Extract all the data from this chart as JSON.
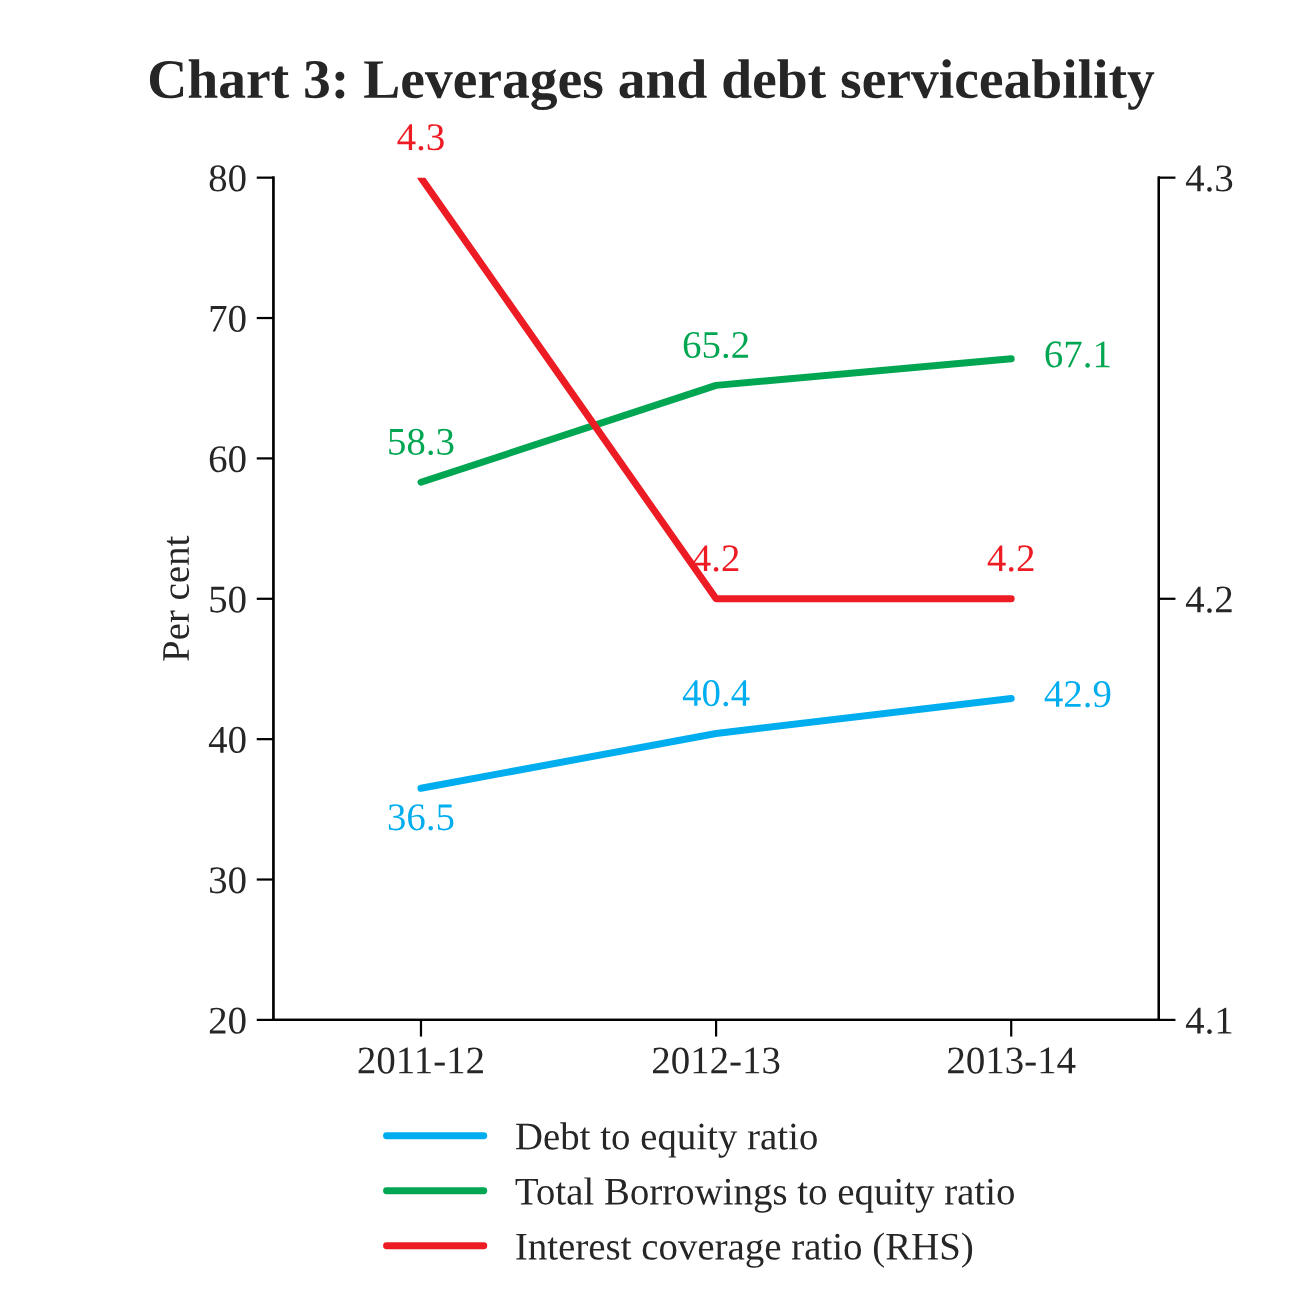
{
  "chart_data": {
    "type": "line",
    "title": "Chart 3: Leverages and debt serviceability",
    "ylabel": "Per cent",
    "categories": [
      "2011-12",
      "2012-13",
      "2013-14"
    ],
    "series": [
      {
        "name": "Debt to equity ratio",
        "color": "#00aeef",
        "values": [
          36.5,
          40.4,
          42.9
        ]
      },
      {
        "name": "Total Borrowings to equity ratio",
        "color": "#00a651",
        "values": [
          58.3,
          65.2,
          67.1
        ]
      },
      {
        "name": "Interest coverage ratio (RHS)",
        "color": "#ed1c24",
        "values": [
          4.3,
          4.2,
          4.2
        ],
        "axis": "y2"
      }
    ],
    "ylim": [
      20,
      80
    ],
    "yticks": [
      20,
      30,
      40,
      50,
      60,
      70,
      80
    ],
    "y2lim": [
      4.1,
      4.3
    ],
    "y2ticks": [
      4.1,
      4.2,
      4.3
    ],
    "data_labels": true,
    "legend": "bottom",
    "grid": false,
    "marker": "none",
    "line_style": "solid"
  }
}
